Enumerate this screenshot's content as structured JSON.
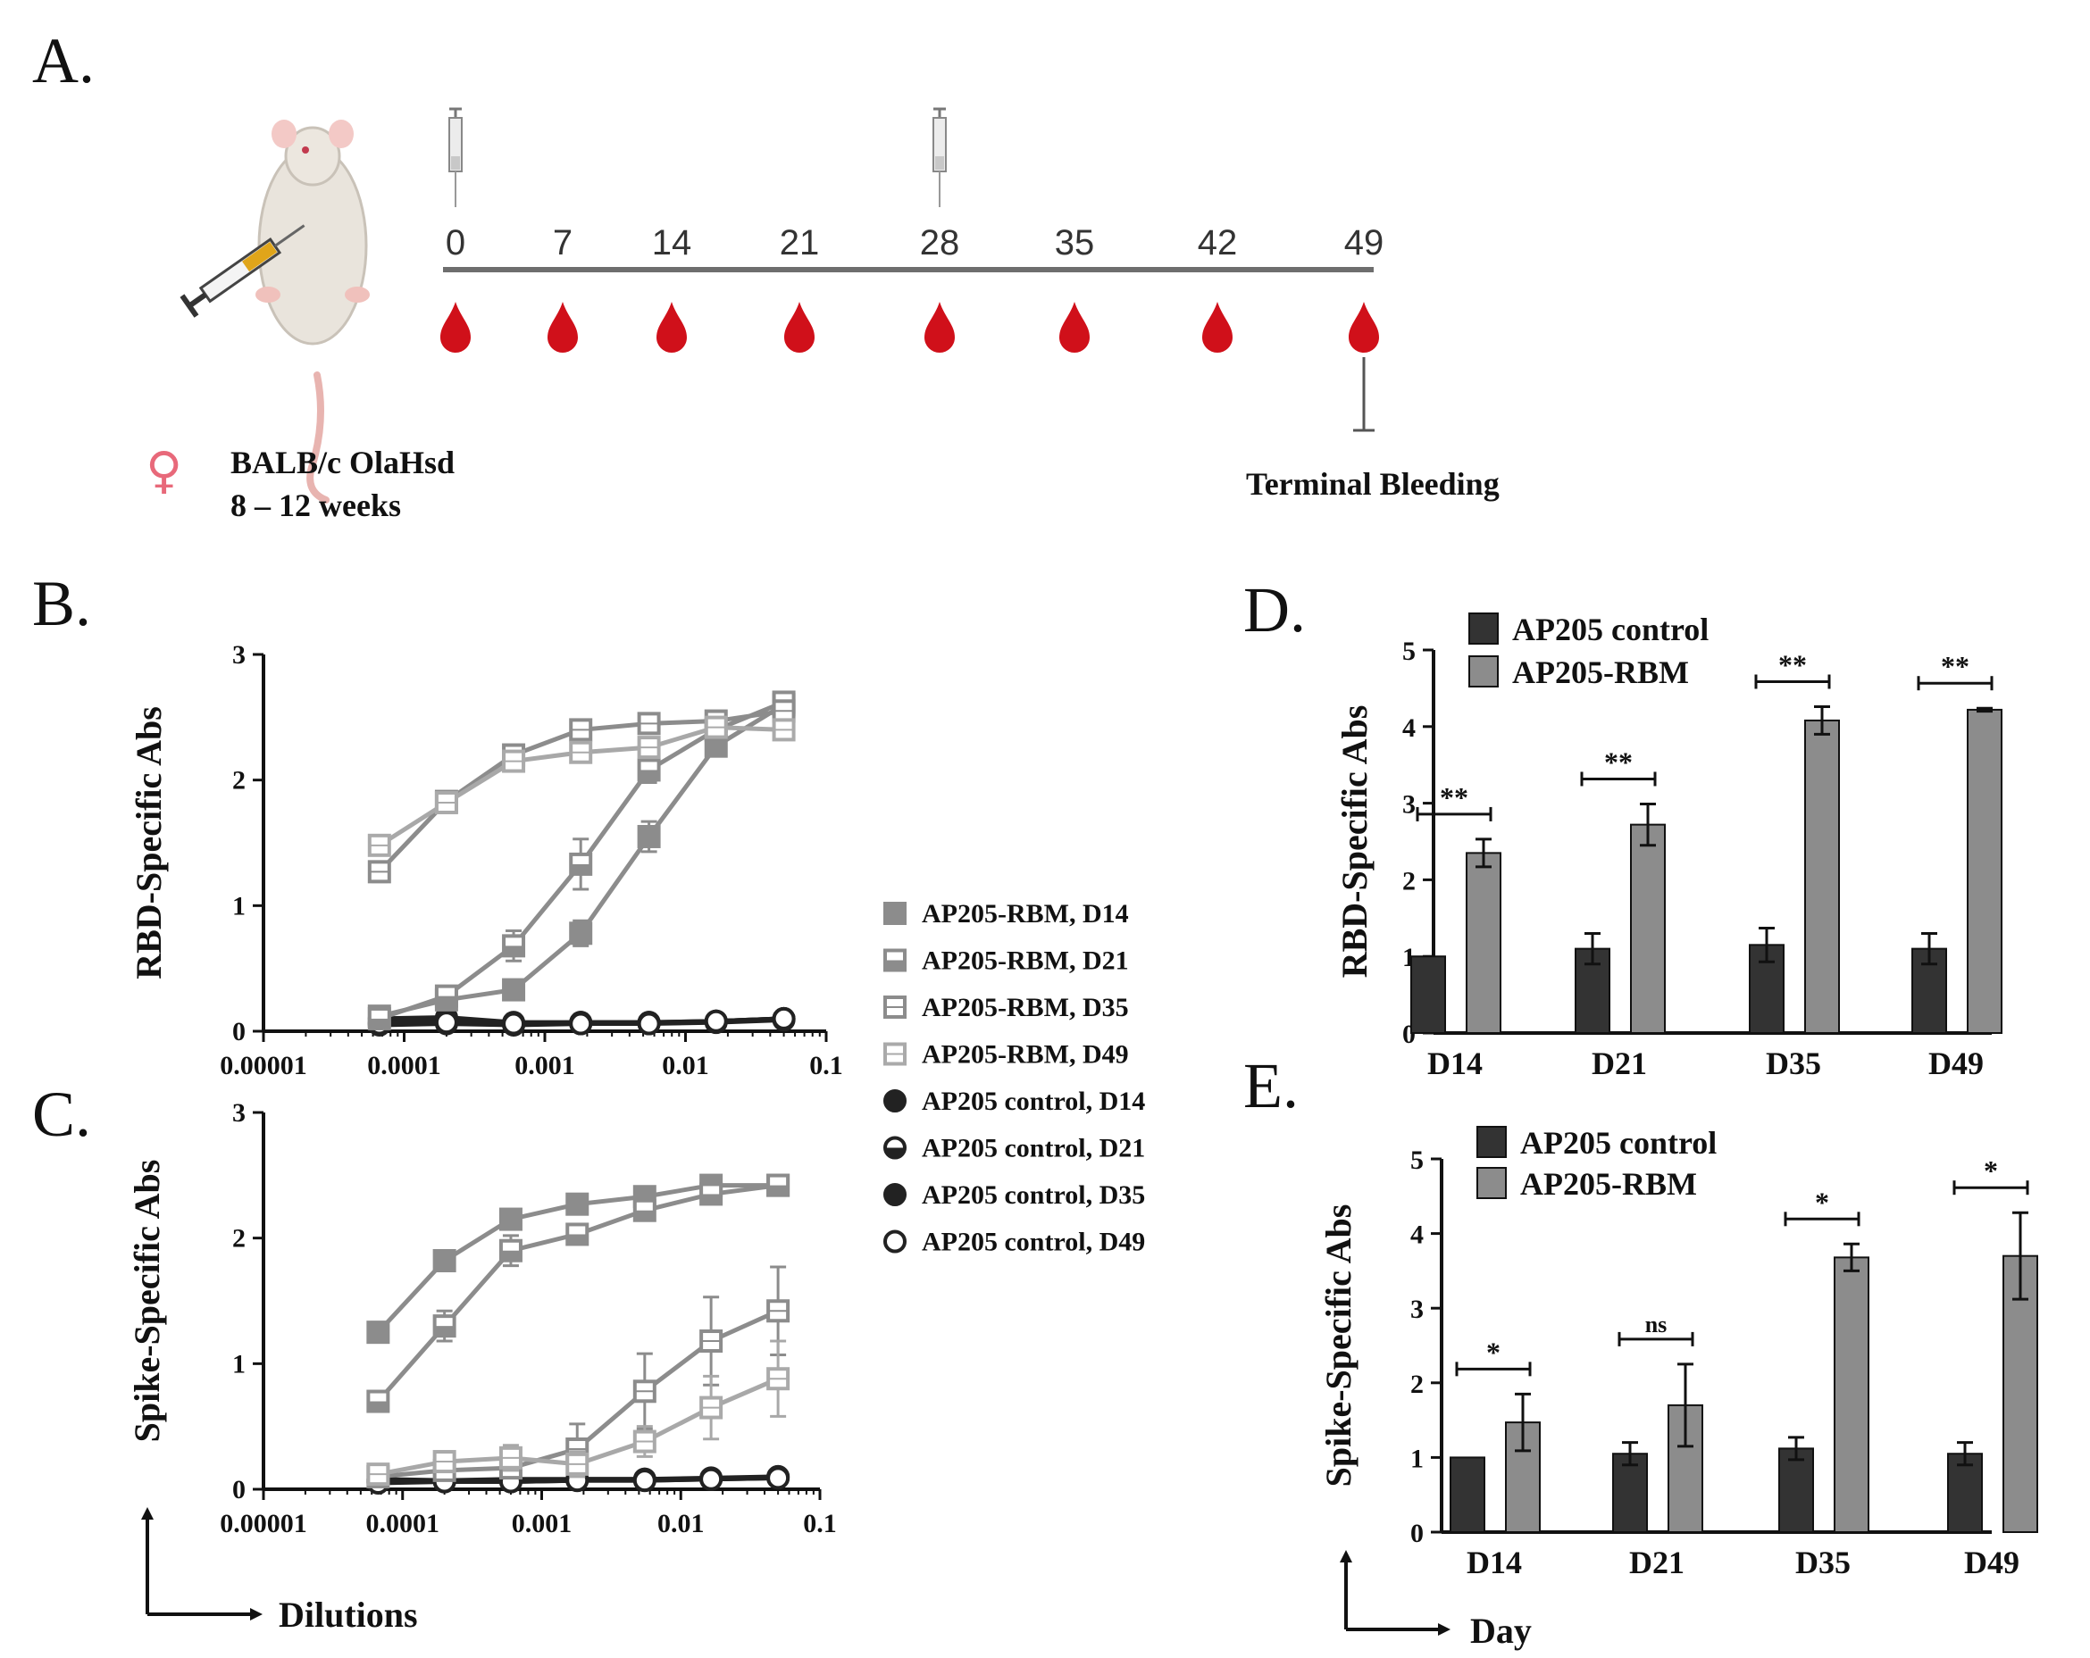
{
  "panels": {
    "A": "A.",
    "B": "B.",
    "C": "C.",
    "D": "D.",
    "E": "E."
  },
  "timeline": {
    "days": [
      "0",
      "7",
      "14",
      "21",
      "28",
      "35",
      "42",
      "49"
    ],
    "injection_days": [
      "0",
      "28"
    ],
    "mouse_strain": "BALB/c OlaHsd",
    "mouse_age": "8 – 12 weeks",
    "terminal_label": "Terminal Bleeding",
    "female_symbol": "♀",
    "colors": {
      "blood": "#d0101a",
      "line": "#6e6e6e",
      "female": "#e8697a"
    }
  },
  "legend": [
    {
      "label": "AP205-RBM, D14",
      "marker": "square-filled-gray"
    },
    {
      "label": "AP205-RBM, D21",
      "marker": "square-half-gray"
    },
    {
      "label": "AP205-RBM, D35",
      "marker": "square-open-gray"
    },
    {
      "label": "AP205-RBM, D49",
      "marker": "square-open-light"
    },
    {
      "label": "AP205 control, D14",
      "marker": "circle-filled-black"
    },
    {
      "label": "AP205 control, D21",
      "marker": "circle-half-black"
    },
    {
      "label": "AP205 control, D35",
      "marker": "circle-filled-black"
    },
    {
      "label": "AP205 control, D49",
      "marker": "circle-open-black"
    }
  ],
  "arrow_labels": {
    "dilutions": "Dilutions",
    "day": "Day"
  },
  "chart_data": [
    {
      "id": "B",
      "type": "line",
      "xscale": "log",
      "xlim": [
        1e-05,
        0.1
      ],
      "ylim": [
        0,
        3
      ],
      "xticks": [
        "0.00001",
        "0.0001",
        "0.001",
        "0.01",
        "0.1"
      ],
      "yticks": [
        "0",
        "1",
        "2",
        "3"
      ],
      "ylabel": "RBD-Specific Abs",
      "x": [
        6.67e-05,
        0.0002,
        0.0006,
        0.0018,
        0.0055,
        0.0165,
        0.05
      ],
      "series": [
        {
          "name": "AP205-RBM, D14",
          "values": [
            0.12,
            0.25,
            0.33,
            0.78,
            1.55,
            2.27,
            2.6
          ],
          "errors": [
            0.04,
            0.05,
            0.05,
            0.1,
            0.12,
            0.06,
            0.05
          ]
        },
        {
          "name": "AP205-RBM, D21",
          "values": [
            0.1,
            0.28,
            0.68,
            1.33,
            2.08,
            2.4,
            2.62
          ],
          "errors": [
            0.05,
            0.05,
            0.12,
            0.2,
            0.1,
            0.06,
            0.05
          ]
        },
        {
          "name": "AP205-RBM, D35",
          "values": [
            1.27,
            1.83,
            2.2,
            2.4,
            2.45,
            2.47,
            2.55
          ],
          "errors": [
            0.08,
            0.04,
            0.05,
            0.05,
            0.04,
            0.04,
            0.05
          ]
        },
        {
          "name": "AP205-RBM, D49",
          "values": [
            1.48,
            1.82,
            2.15,
            2.22,
            2.26,
            2.42,
            2.4
          ],
          "errors": [
            0.04,
            0.04,
            0.05,
            0.05,
            0.04,
            0.04,
            0.05
          ]
        },
        {
          "name": "AP205 control, D14",
          "values": [
            0.05,
            0.06,
            0.05,
            0.06,
            0.06,
            0.07,
            0.09
          ],
          "errors": [
            0.01,
            0.01,
            0.01,
            0.01,
            0.01,
            0.01,
            0.01
          ]
        },
        {
          "name": "AP205 control, D21",
          "values": [
            0.07,
            0.08,
            0.06,
            0.07,
            0.07,
            0.08,
            0.1
          ],
          "errors": [
            0.01,
            0.01,
            0.01,
            0.01,
            0.01,
            0.01,
            0.01
          ]
        },
        {
          "name": "AP205 control, D35",
          "values": [
            0.1,
            0.11,
            0.07,
            0.07,
            0.07,
            0.08,
            0.1
          ],
          "errors": [
            0.01,
            0.01,
            0.01,
            0.01,
            0.01,
            0.01,
            0.01
          ]
        },
        {
          "name": "AP205 control, D49",
          "values": [
            0.06,
            0.07,
            0.06,
            0.06,
            0.06,
            0.08,
            0.1
          ],
          "errors": [
            0.01,
            0.01,
            0.01,
            0.01,
            0.01,
            0.01,
            0.01
          ]
        }
      ]
    },
    {
      "id": "C",
      "type": "line",
      "xscale": "log",
      "xlim": [
        1e-05,
        0.1
      ],
      "ylim": [
        0,
        3
      ],
      "xticks": [
        "0.00001",
        "0.0001",
        "0.001",
        "0.01",
        "0.1"
      ],
      "yticks": [
        "0",
        "1",
        "2",
        "3"
      ],
      "ylabel": "Spike-Specific Abs",
      "x": [
        6.67e-05,
        0.0002,
        0.0006,
        0.0018,
        0.0055,
        0.0165,
        0.05
      ],
      "series": [
        {
          "name": "AP205-RBM, D14",
          "values": [
            1.25,
            1.82,
            2.15,
            2.27,
            2.33,
            2.42,
            2.42
          ],
          "errors": [
            0.08,
            0.08,
            0.07,
            0.05,
            0.05,
            0.05,
            0.05
          ]
        },
        {
          "name": "AP205-RBM, D21",
          "values": [
            0.7,
            1.3,
            1.9,
            2.03,
            2.22,
            2.35,
            2.42
          ],
          "errors": [
            0.08,
            0.12,
            0.12,
            0.07,
            0.05,
            0.05,
            0.05
          ]
        },
        {
          "name": "AP205-RBM, D35",
          "values": [
            0.1,
            0.15,
            0.17,
            0.32,
            0.78,
            1.18,
            1.42
          ],
          "errors": [
            0.04,
            0.05,
            0.06,
            0.2,
            0.3,
            0.35,
            0.35
          ]
        },
        {
          "name": "AP205-RBM, D49",
          "values": [
            0.12,
            0.22,
            0.25,
            0.2,
            0.38,
            0.65,
            0.88
          ],
          "errors": [
            0.05,
            0.08,
            0.1,
            0.1,
            0.12,
            0.25,
            0.3
          ]
        },
        {
          "name": "AP205 control, D14",
          "values": [
            0.06,
            0.06,
            0.06,
            0.07,
            0.07,
            0.08,
            0.09
          ],
          "errors": [
            0.01,
            0.01,
            0.01,
            0.01,
            0.01,
            0.01,
            0.01
          ]
        },
        {
          "name": "AP205 control, D21",
          "values": [
            0.08,
            0.07,
            0.07,
            0.08,
            0.08,
            0.08,
            0.1
          ],
          "errors": [
            0.01,
            0.01,
            0.01,
            0.01,
            0.01,
            0.01,
            0.01
          ]
        },
        {
          "name": "AP205 control, D35",
          "values": [
            0.07,
            0.07,
            0.08,
            0.08,
            0.08,
            0.09,
            0.1
          ],
          "errors": [
            0.01,
            0.01,
            0.01,
            0.01,
            0.01,
            0.01,
            0.01
          ]
        },
        {
          "name": "AP205 control, D49",
          "values": [
            0.05,
            0.06,
            0.06,
            0.07,
            0.07,
            0.08,
            0.09
          ],
          "errors": [
            0.01,
            0.01,
            0.01,
            0.01,
            0.01,
            0.01,
            0.01
          ]
        }
      ]
    },
    {
      "id": "D",
      "type": "bar",
      "categories": [
        "D14",
        "D21",
        "D35",
        "D49"
      ],
      "ylabel": "RBD-Specific Abs",
      "ylim": [
        0,
        5
      ],
      "yticks": [
        "0",
        "1",
        "2",
        "3",
        "4",
        "5"
      ],
      "series": [
        {
          "name": "AP205 control",
          "values": [
            1.0,
            1.1,
            1.15,
            1.1
          ],
          "errors": [
            0.0,
            0.2,
            0.22,
            0.2
          ]
        },
        {
          "name": "AP205-RBM",
          "values": [
            2.35,
            2.72,
            4.08,
            4.22
          ],
          "errors": [
            0.18,
            0.27,
            0.18,
            0.02
          ]
        }
      ],
      "significance": [
        "**",
        "**",
        "**",
        "**"
      ]
    },
    {
      "id": "E",
      "type": "bar",
      "categories": [
        "D14",
        "D21",
        "D35",
        "D49"
      ],
      "ylabel": "Spike-Specific Abs",
      "ylim": [
        0,
        5
      ],
      "yticks": [
        "0",
        "1",
        "2",
        "3",
        "4",
        "5"
      ],
      "series": [
        {
          "name": "AP205 control",
          "values": [
            1.0,
            1.05,
            1.12,
            1.05
          ],
          "errors": [
            0.0,
            0.15,
            0.15,
            0.15
          ]
        },
        {
          "name": "AP205-RBM",
          "values": [
            1.47,
            1.7,
            3.68,
            3.7
          ],
          "errors": [
            0.38,
            0.55,
            0.18,
            0.58
          ]
        }
      ],
      "significance": [
        "*",
        "ns",
        "*",
        "*"
      ]
    }
  ],
  "colors": {
    "control_bar": "#333333",
    "rbm_bar": "#8c8c8c",
    "rbm_line": "#8c8c8c",
    "control_line": "#222222",
    "axis": "#111111"
  }
}
